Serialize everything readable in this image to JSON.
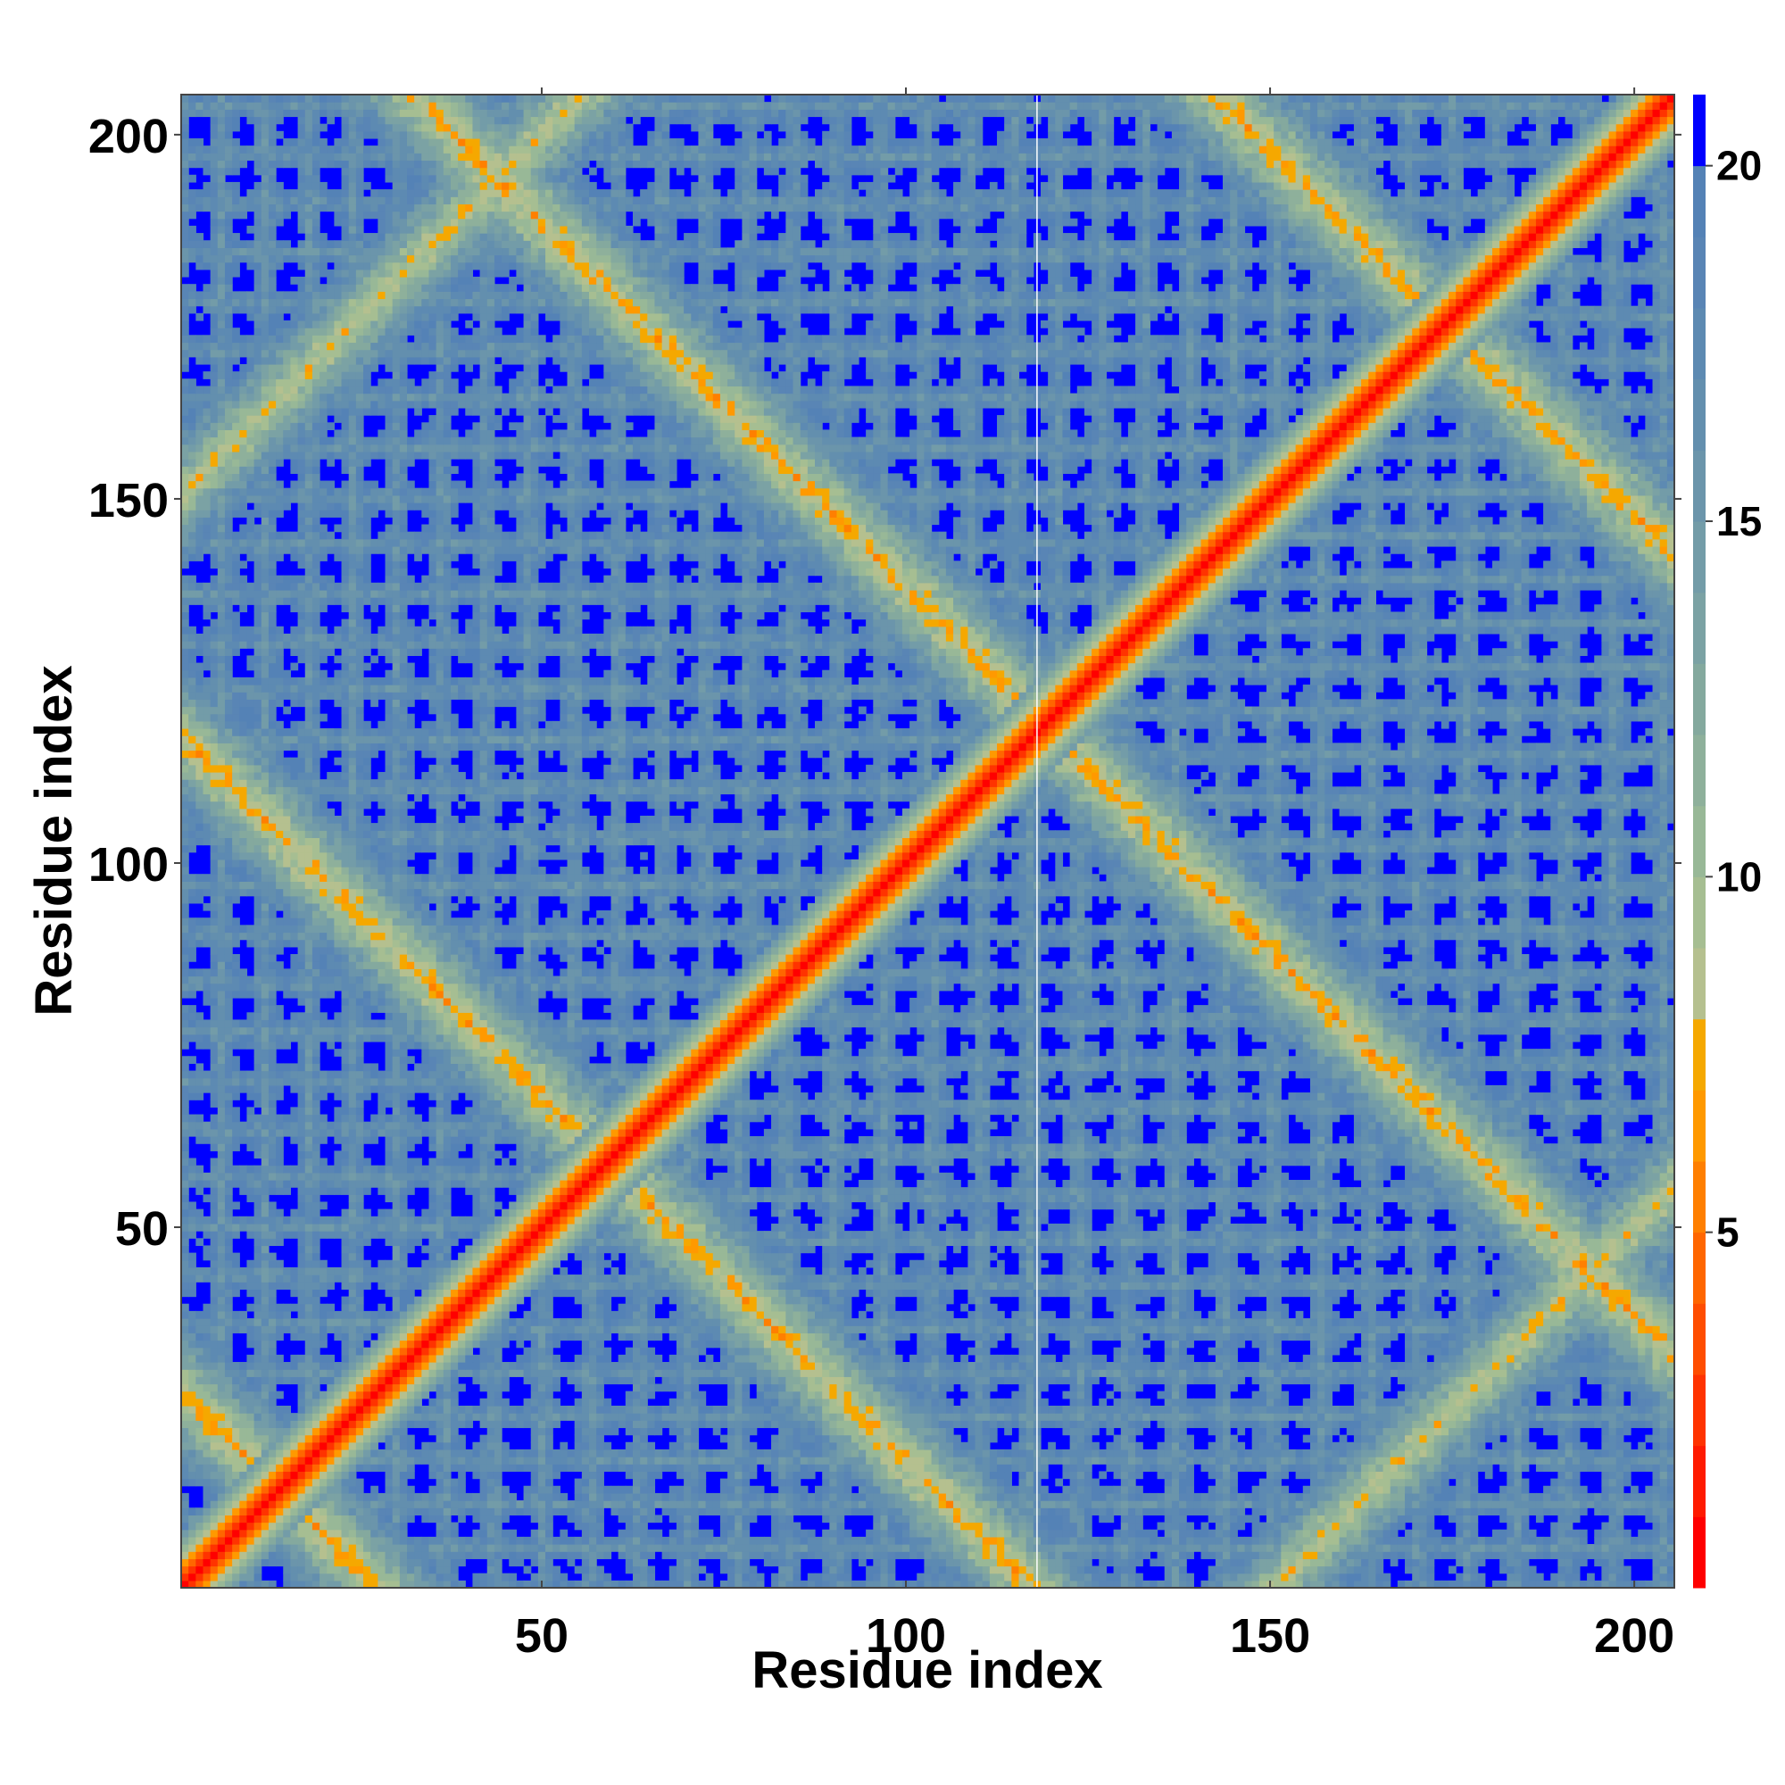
{
  "chart_data": {
    "type": "heatmap",
    "title": "",
    "xlabel": "Residue index",
    "ylabel": "Residue index",
    "n_residues": 205,
    "xlim": [
      1,
      205
    ],
    "ylim": [
      1,
      205
    ],
    "x_ticks": [
      50,
      100,
      150,
      200
    ],
    "y_ticks": [
      50,
      100,
      150,
      200
    ],
    "colorbar": {
      "ticks": [
        5,
        10,
        15,
        20
      ],
      "range": [
        0,
        21
      ],
      "levels": [
        {
          "max": 1.0,
          "color": "#ff0000"
        },
        {
          "max": 2.0,
          "color": "#ff1a00"
        },
        {
          "max": 3.0,
          "color": "#ff3300"
        },
        {
          "max": 4.0,
          "color": "#ff4d00"
        },
        {
          "max": 5.0,
          "color": "#ff6600"
        },
        {
          "max": 6.0,
          "color": "#ff7f00"
        },
        {
          "max": 7.0,
          "color": "#ff9900"
        },
        {
          "max": 8.0,
          "color": "#f5a800"
        },
        {
          "max": 9.0,
          "color": "#b5c08f"
        },
        {
          "max": 10.0,
          "color": "#a6be92"
        },
        {
          "max": 11.0,
          "color": "#98b897"
        },
        {
          "max": 12.0,
          "color": "#8eb09b"
        },
        {
          "max": 13.0,
          "color": "#84a99e"
        },
        {
          "max": 14.0,
          "color": "#7ba2a4"
        },
        {
          "max": 15.0,
          "color": "#739ca8"
        },
        {
          "max": 16.0,
          "color": "#6b95ab"
        },
        {
          "max": 17.0,
          "color": "#638fae"
        },
        {
          "max": 18.0,
          "color": "#5d8ab2"
        },
        {
          "max": 19.0,
          "color": "#5985b5"
        },
        {
          "max": 20.0,
          "color": "#5482b6"
        },
        {
          "max": 21.0,
          "color": "#0000ff"
        }
      ]
    },
    "description_of_values": "Residue-residue distance map, symmetric about the diagonal; near-zero values on the diagonal, helical contact bands forming a lattice pattern, values above 20 shown in blue",
    "band_patterns": [
      {
        "name": "diagonal",
        "offset": 0,
        "half_width_residues": 7
      },
      {
        "name": "anti-diagonal bands",
        "sum_values": [
          28,
          118,
          238,
          348
        ]
      },
      {
        "name": "parallel bands",
        "diff_values": [
          -150,
          150
        ]
      }
    ],
    "gap_residue": 118
  }
}
